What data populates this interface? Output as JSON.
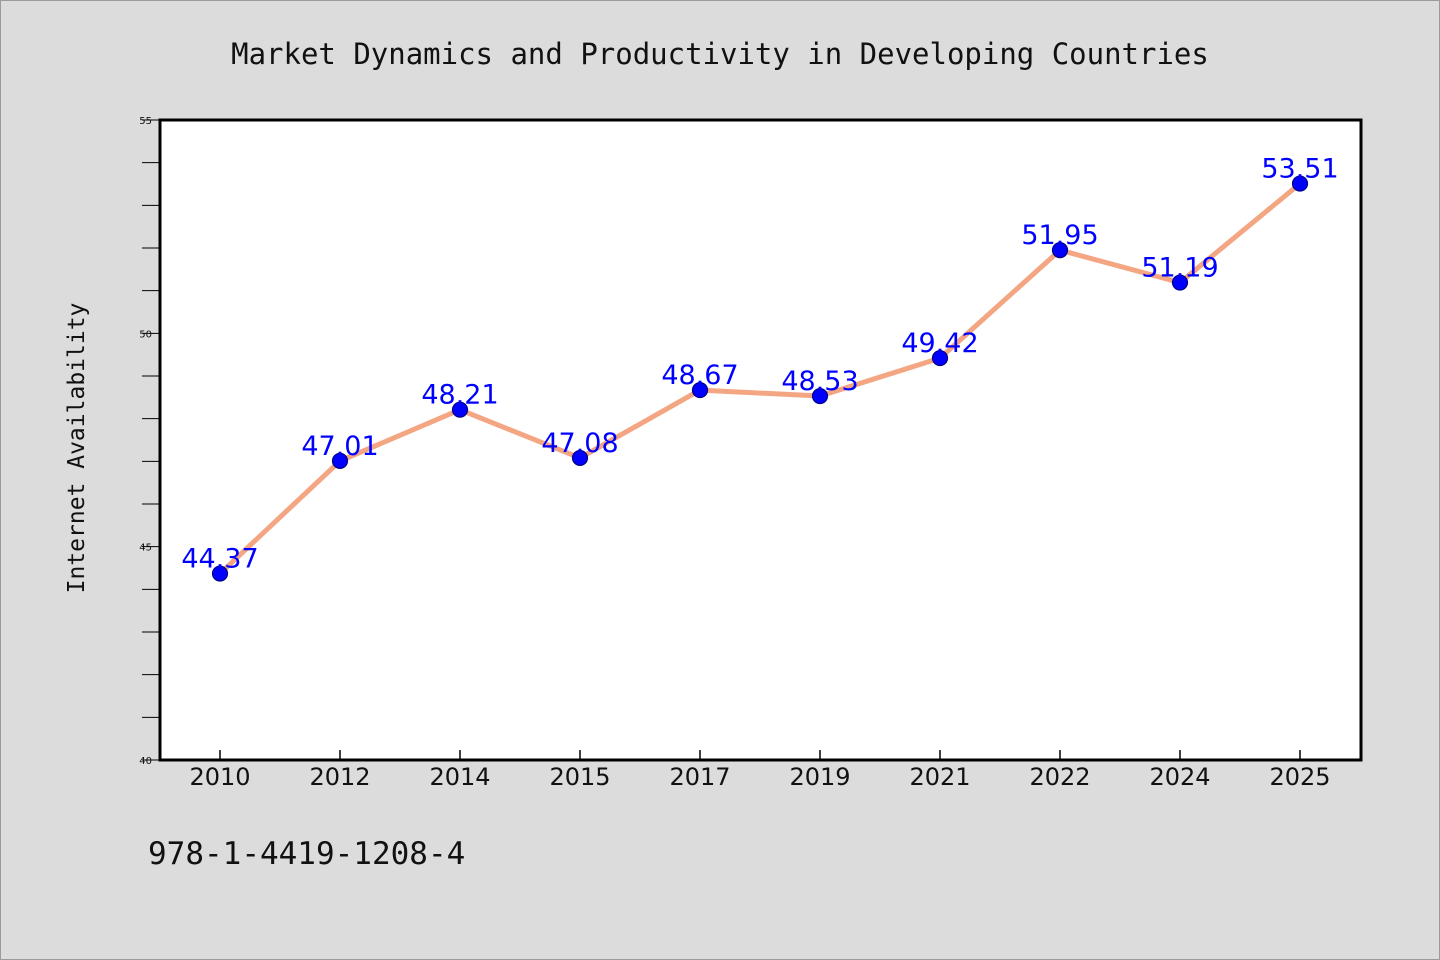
{
  "chart_data": {
    "type": "line",
    "title": "Market Dynamics and Productivity in Developing Countries",
    "xlabel": "",
    "ylabel": "Internet Availability",
    "categories": [
      "2010",
      "2012",
      "2014",
      "2015",
      "2017",
      "2019",
      "2021",
      "2022",
      "2024",
      "2025"
    ],
    "series": [
      {
        "values": [
          44.37,
          47.01,
          48.21,
          47.08,
          48.67,
          48.53,
          49.42,
          51.95,
          51.19,
          53.51
        ],
        "labels": [
          "44.37",
          "47.01",
          "48.21",
          "47.08",
          "48.67",
          "48.53",
          "49.42",
          "51.95",
          "51.19",
          "53.51"
        ],
        "line_color": "#f4a582",
        "marker_color": "#0000ff",
        "label_color": "#0000ff"
      }
    ],
    "ylim": [
      40,
      55
    ],
    "yticks": [
      "40",
      "45",
      "50",
      "55"
    ],
    "grid": false,
    "legend": "none"
  },
  "footnote": "978-1-4419-1208-4",
  "colors": {
    "background": "#dcdcdc",
    "plot_background": "#ffffff",
    "axis": "#000000"
  }
}
